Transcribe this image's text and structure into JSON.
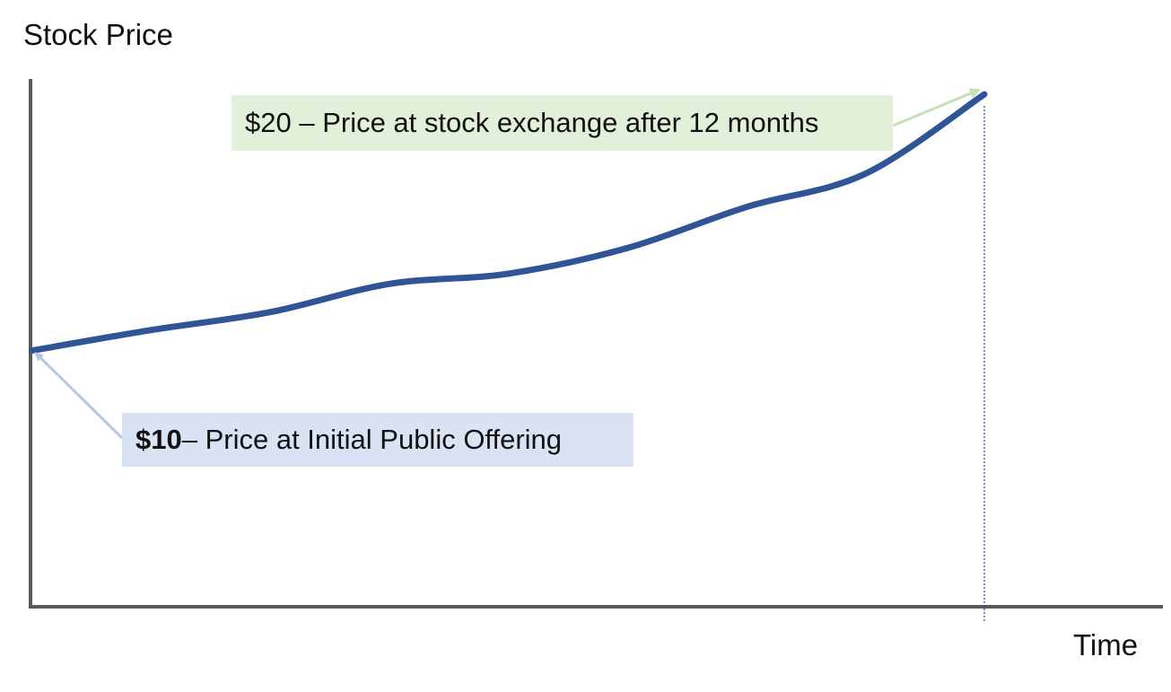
{
  "chart_data": {
    "type": "line",
    "xlabel": "Time",
    "ylabel": "Stock Price",
    "x": [
      0,
      1.5,
      3,
      4.5,
      6,
      7.5,
      9,
      10.5,
      12
    ],
    "series": [
      {
        "values": [
          10,
          10.8,
          11.5,
          12.6,
          13.0,
          14.0,
          15.6,
          16.9,
          20
        ]
      }
    ],
    "xlim": [
      0,
      12
    ],
    "ylim": [
      0,
      22
    ],
    "grid": false,
    "annotations": [
      {
        "id": "start",
        "bold_text": "$10",
        "text": " – Price at Initial Public Offering",
        "bg_color": "#dae3f3",
        "arrow_color": "#b4c7e7"
      },
      {
        "id": "end",
        "text": "$20 – Price at stock exchange after 12 months",
        "bg_color": "#e2f0d9",
        "arrow_color": "#c5e0b4"
      }
    ],
    "colors": {
      "line": "#2f5597",
      "axis": "#595959",
      "marker_line": "#2f5597"
    }
  }
}
